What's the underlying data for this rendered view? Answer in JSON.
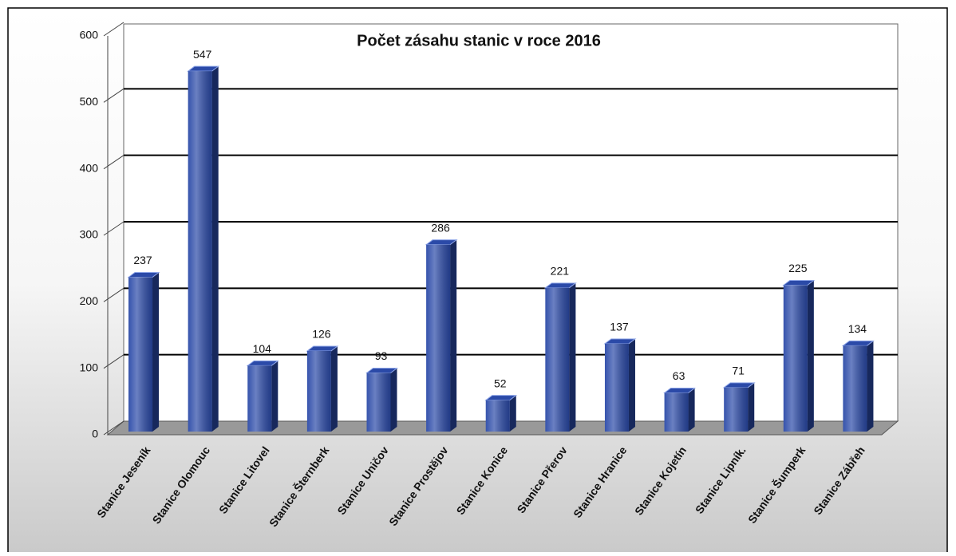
{
  "chart_data": {
    "type": "bar3d",
    "title": "Počet zásahu stanic v roce 2016",
    "categories": [
      "Stanice Jeseník",
      "Stanice Olomouc",
      "Stanice Litovel",
      "Stanice Šternberk",
      "Stanice Uničov",
      "Stanice Prostějov",
      "Stanice Konice",
      "Stanice Přerov",
      "Stanice Hranice",
      "Stanice Kojetín",
      "Stanice Lipník.",
      "Stanice Šumperk",
      "Stanice Zábřeh"
    ],
    "values": [
      237,
      547,
      104,
      126,
      93,
      286,
      52,
      221,
      137,
      63,
      71,
      225,
      134
    ],
    "color": "#2b4aa8",
    "ylim": [
      0,
      600
    ],
    "yticks": [
      0,
      100,
      200,
      300,
      400,
      500,
      600
    ],
    "grid": true
  }
}
